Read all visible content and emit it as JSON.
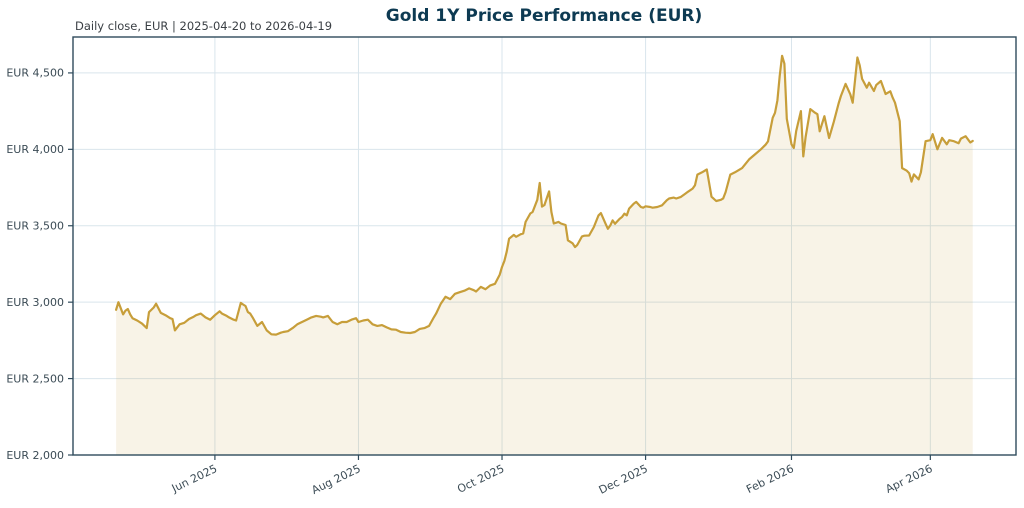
{
  "colors": {
    "title": "#0D3A52",
    "subtitle": "#3A3F44",
    "text": "#3B4B55",
    "spine": "#2F4B5C",
    "grid": "#D9E5EC",
    "line": "#C79E3A",
    "fill": "rgba(199,158,58,0.12)",
    "background": "#FFFFFF"
  },
  "chart_data": {
    "type": "line",
    "title": "Gold 1Y Price Performance (EUR)",
    "subtitle": "Daily close, EUR | 2025-04-20 to 2026-04-19",
    "currency": "EUR",
    "x_start_date": "2025-04-20",
    "x_end_date": "2026-04-19",
    "xlabel": "",
    "ylabel": "",
    "grid": true,
    "legend": "none",
    "ylim": [
      2000,
      4735
    ],
    "xlim_days": [
      -18.3,
      382.4
    ],
    "y_ticks": [
      {
        "label": "EUR 2,000",
        "value": 2000
      },
      {
        "label": "EUR 2,500",
        "value": 2500
      },
      {
        "label": "EUR 3,000",
        "value": 3000
      },
      {
        "label": "EUR 3,500",
        "value": 3500
      },
      {
        "label": "EUR 4,000",
        "value": 4000
      },
      {
        "label": "EUR 4,500",
        "value": 4500
      }
    ],
    "x_ticks": [
      {
        "label": "Jun 2025",
        "day": 42
      },
      {
        "label": "Aug 2025",
        "day": 103
      },
      {
        "label": "Oct 2025",
        "day": 164
      },
      {
        "label": "Dec 2025",
        "day": 225
      },
      {
        "label": "Feb 2026",
        "day": 287
      },
      {
        "label": "Apr 2026",
        "day": 346
      }
    ],
    "series": [
      {
        "name": "Gold daily close (EUR)",
        "color": "#C79E3A",
        "fill": "rgba(199,158,58,0.12)",
        "points": [
          [
            0,
            2950
          ],
          [
            1,
            3000
          ],
          [
            2,
            2960
          ],
          [
            3,
            2920
          ],
          [
            4,
            2945
          ],
          [
            5,
            2955
          ],
          [
            6,
            2920
          ],
          [
            7,
            2895
          ],
          [
            9,
            2880
          ],
          [
            11,
            2860
          ],
          [
            13,
            2830
          ],
          [
            14,
            2935
          ],
          [
            16,
            2965
          ],
          [
            17,
            2990
          ],
          [
            19,
            2930
          ],
          [
            21,
            2915
          ],
          [
            23,
            2895
          ],
          [
            24,
            2890
          ],
          [
            25,
            2815
          ],
          [
            27,
            2855
          ],
          [
            29,
            2865
          ],
          [
            31,
            2890
          ],
          [
            33,
            2905
          ],
          [
            34,
            2915
          ],
          [
            36,
            2925
          ],
          [
            38,
            2900
          ],
          [
            40,
            2885
          ],
          [
            42,
            2915
          ],
          [
            44,
            2940
          ],
          [
            45,
            2925
          ],
          [
            47,
            2910
          ],
          [
            48,
            2900
          ],
          [
            50,
            2885
          ],
          [
            51,
            2880
          ],
          [
            53,
            2995
          ],
          [
            54,
            2985
          ],
          [
            55,
            2975
          ],
          [
            56,
            2935
          ],
          [
            57,
            2925
          ],
          [
            58,
            2900
          ],
          [
            60,
            2845
          ],
          [
            62,
            2870
          ],
          [
            64,
            2815
          ],
          [
            66,
            2790
          ],
          [
            68,
            2788
          ],
          [
            70,
            2800
          ],
          [
            71,
            2805
          ],
          [
            73,
            2810
          ],
          [
            75,
            2830
          ],
          [
            77,
            2855
          ],
          [
            79,
            2870
          ],
          [
            81,
            2885
          ],
          [
            83,
            2900
          ],
          [
            85,
            2910
          ],
          [
            87,
            2905
          ],
          [
            88,
            2900
          ],
          [
            90,
            2910
          ],
          [
            92,
            2870
          ],
          [
            94,
            2855
          ],
          [
            96,
            2870
          ],
          [
            98,
            2870
          ],
          [
            100,
            2885
          ],
          [
            102,
            2895
          ],
          [
            103,
            2870
          ],
          [
            105,
            2880
          ],
          [
            107,
            2885
          ],
          [
            109,
            2855
          ],
          [
            111,
            2845
          ],
          [
            113,
            2850
          ],
          [
            115,
            2835
          ],
          [
            117,
            2822
          ],
          [
            119,
            2820
          ],
          [
            121,
            2805
          ],
          [
            123,
            2800
          ],
          [
            125,
            2798
          ],
          [
            127,
            2805
          ],
          [
            129,
            2825
          ],
          [
            131,
            2830
          ],
          [
            133,
            2845
          ],
          [
            135,
            2900
          ],
          [
            136,
            2925
          ],
          [
            138,
            2990
          ],
          [
            140,
            3035
          ],
          [
            142,
            3020
          ],
          [
            144,
            3055
          ],
          [
            146,
            3065
          ],
          [
            148,
            3075
          ],
          [
            150,
            3090
          ],
          [
            152,
            3078
          ],
          [
            153,
            3070
          ],
          [
            155,
            3100
          ],
          [
            157,
            3085
          ],
          [
            159,
            3110
          ],
          [
            161,
            3120
          ],
          [
            163,
            3180
          ],
          [
            164,
            3230
          ],
          [
            165,
            3270
          ],
          [
            166,
            3330
          ],
          [
            167,
            3415
          ],
          [
            169,
            3440
          ],
          [
            170,
            3428
          ],
          [
            172,
            3445
          ],
          [
            173,
            3450
          ],
          [
            174,
            3525
          ],
          [
            176,
            3580
          ],
          [
            177,
            3590
          ],
          [
            179,
            3670
          ],
          [
            180,
            3780
          ],
          [
            181,
            3625
          ],
          [
            182,
            3635
          ],
          [
            184,
            3725
          ],
          [
            185,
            3590
          ],
          [
            186,
            3515
          ],
          [
            188,
            3525
          ],
          [
            189,
            3515
          ],
          [
            191,
            3505
          ],
          [
            192,
            3405
          ],
          [
            194,
            3385
          ],
          [
            195,
            3360
          ],
          [
            196,
            3375
          ],
          [
            198,
            3430
          ],
          [
            199,
            3435
          ],
          [
            201,
            3436
          ],
          [
            203,
            3491
          ],
          [
            205,
            3568
          ],
          [
            206,
            3583
          ],
          [
            208,
            3513
          ],
          [
            209,
            3480
          ],
          [
            210,
            3502
          ],
          [
            211,
            3535
          ],
          [
            212,
            3513
          ],
          [
            214,
            3546
          ],
          [
            215,
            3557
          ],
          [
            216,
            3579
          ],
          [
            217,
            3568
          ],
          [
            218,
            3612
          ],
          [
            220,
            3645
          ],
          [
            221,
            3656
          ],
          [
            223,
            3623
          ],
          [
            224,
            3618
          ],
          [
            225,
            3627
          ],
          [
            227,
            3623
          ],
          [
            228,
            3618
          ],
          [
            230,
            3623
          ],
          [
            232,
            3634
          ],
          [
            234,
            3667
          ],
          [
            235,
            3678
          ],
          [
            237,
            3684
          ],
          [
            238,
            3678
          ],
          [
            240,
            3689
          ],
          [
            242,
            3711
          ],
          [
            243,
            3722
          ],
          [
            245,
            3743
          ],
          [
            246,
            3765
          ],
          [
            247,
            3835
          ],
          [
            249,
            3850
          ],
          [
            251,
            3868
          ],
          [
            253,
            3690
          ],
          [
            255,
            3662
          ],
          [
            257,
            3670
          ],
          [
            258,
            3679
          ],
          [
            259,
            3720
          ],
          [
            261,
            3835
          ],
          [
            263,
            3850
          ],
          [
            266,
            3877
          ],
          [
            269,
            3934
          ],
          [
            271,
            3960
          ],
          [
            274,
            4000
          ],
          [
            276,
            4030
          ],
          [
            277,
            4052
          ],
          [
            279,
            4206
          ],
          [
            280,
            4239
          ],
          [
            281,
            4320
          ],
          [
            282,
            4480
          ],
          [
            283,
            4612
          ],
          [
            284,
            4560
          ],
          [
            285,
            4200
          ],
          [
            287,
            4033
          ],
          [
            288,
            4009
          ],
          [
            289,
            4120
          ],
          [
            291,
            4250
          ],
          [
            292,
            3954
          ],
          [
            293,
            4080
          ],
          [
            295,
            4263
          ],
          [
            297,
            4240
          ],
          [
            298,
            4230
          ],
          [
            299,
            4118
          ],
          [
            301,
            4217
          ],
          [
            303,
            4074
          ],
          [
            305,
            4180
          ],
          [
            307,
            4300
          ],
          [
            308,
            4349
          ],
          [
            310,
            4428
          ],
          [
            312,
            4360
          ],
          [
            313,
            4305
          ],
          [
            314,
            4450
          ],
          [
            315,
            4601
          ],
          [
            316,
            4550
          ],
          [
            317,
            4461
          ],
          [
            319,
            4403
          ],
          [
            320,
            4436
          ],
          [
            322,
            4382
          ],
          [
            323,
            4420
          ],
          [
            325,
            4447
          ],
          [
            327,
            4362
          ],
          [
            329,
            4380
          ],
          [
            330,
            4338
          ],
          [
            331,
            4305
          ],
          [
            333,
            4184
          ],
          [
            334,
            3877
          ],
          [
            336,
            3860
          ],
          [
            337,
            3844
          ],
          [
            338,
            3789
          ],
          [
            339,
            3836
          ],
          [
            341,
            3803
          ],
          [
            342,
            3850
          ],
          [
            344,
            4053
          ],
          [
            346,
            4060
          ],
          [
            347,
            4099
          ],
          [
            349,
            4000
          ],
          [
            351,
            4075
          ],
          [
            353,
            4033
          ],
          [
            354,
            4060
          ],
          [
            356,
            4053
          ],
          [
            358,
            4040
          ],
          [
            359,
            4070
          ],
          [
            361,
            4086
          ],
          [
            363,
            4045
          ],
          [
            364,
            4055
          ]
        ]
      }
    ]
  }
}
